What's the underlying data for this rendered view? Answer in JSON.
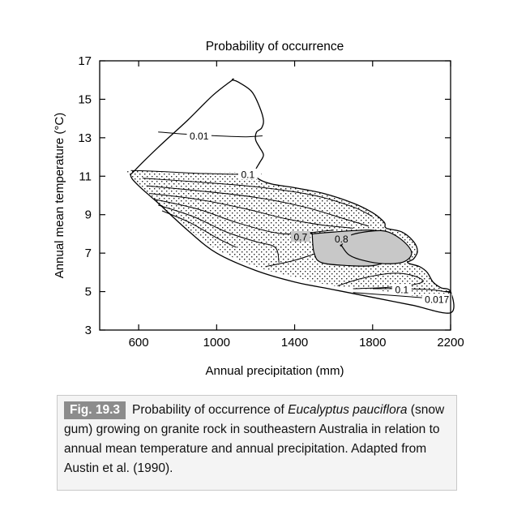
{
  "chart_data": {
    "type": "contour",
    "title": "Probability of occurrence",
    "xlabel": "Annual precipitation (mm)",
    "ylabel": "Annual mean temperature (°C)",
    "xlim": [
      400,
      2200
    ],
    "ylim": [
      3,
      17
    ],
    "x_ticks": [
      600,
      1000,
      1400,
      1800,
      2200
    ],
    "y_ticks": [
      3,
      5,
      7,
      9,
      11,
      13,
      15,
      17
    ],
    "x_tick_labels": [
      "600",
      "1000",
      "1400",
      "1800",
      "2200"
    ],
    "y_tick_labels": [
      "3",
      "5",
      "7",
      "9",
      "11",
      "13",
      "15",
      "17"
    ],
    "contour_labels": [
      "0.01",
      "0.1",
      "0.7",
      "0.8",
      "0.1",
      "0.017"
    ],
    "region_outline": [
      [
        1080,
        16.0
      ],
      [
        1110,
        15.9
      ],
      [
        1180,
        15.4
      ],
      [
        1220,
        14.6
      ],
      [
        1240,
        13.9
      ],
      [
        1230,
        13.5
      ],
      [
        1205,
        13.3
      ],
      [
        1200,
        12.9
      ],
      [
        1220,
        12.5
      ],
      [
        1240,
        12.1
      ],
      [
        1220,
        11.7
      ],
      [
        1200,
        11.3
      ],
      [
        1210,
        10.9
      ],
      [
        1280,
        10.6
      ],
      [
        1400,
        10.4
      ],
      [
        1550,
        10.1
      ],
      [
        1700,
        9.6
      ],
      [
        1800,
        9.1
      ],
      [
        1860,
        8.6
      ],
      [
        1870,
        8.3
      ],
      [
        1950,
        8.1
      ],
      [
        2010,
        7.6
      ],
      [
        2030,
        7.1
      ],
      [
        2010,
        6.7
      ],
      [
        1980,
        6.5
      ],
      [
        2040,
        6.3
      ],
      [
        2080,
        6.0
      ],
      [
        2110,
        5.5
      ],
      [
        2150,
        5.2
      ],
      [
        2200,
        5.0
      ],
      [
        2200,
        3.9
      ],
      [
        2000,
        4.3
      ],
      [
        1800,
        4.7
      ],
      [
        1600,
        5.1
      ],
      [
        1400,
        5.5
      ],
      [
        1200,
        6.1
      ],
      [
        1000,
        7.0
      ],
      [
        850,
        8.2
      ],
      [
        700,
        9.6
      ],
      [
        600,
        10.5
      ],
      [
        560,
        11.0
      ],
      [
        580,
        11.3
      ],
      [
        700,
        12.5
      ],
      [
        850,
        13.9
      ],
      [
        980,
        15.2
      ],
      [
        1080,
        16.0
      ]
    ],
    "stipple_band_upper": [
      [
        560,
        11.3
      ],
      [
        800,
        11.2
      ],
      [
        1200,
        11.2
      ],
      [
        1210,
        10.9
      ],
      [
        1280,
        10.6
      ],
      [
        1400,
        10.4
      ],
      [
        1550,
        10.1
      ],
      [
        1700,
        9.6
      ],
      [
        1800,
        9.1
      ],
      [
        1860,
        8.6
      ],
      [
        1870,
        8.3
      ],
      [
        1950,
        8.1
      ],
      [
        2010,
        7.6
      ],
      [
        2030,
        7.1
      ],
      [
        2010,
        6.7
      ],
      [
        1980,
        6.5
      ],
      [
        2040,
        6.3
      ],
      [
        2080,
        6.0
      ],
      [
        2110,
        5.5
      ],
      [
        2150,
        5.2
      ],
      [
        2200,
        5.0
      ]
    ],
    "stipple_band_lower": [
      [
        2200,
        4.5
      ],
      [
        2100,
        4.6
      ],
      [
        2000,
        4.8
      ],
      [
        1900,
        4.95
      ],
      [
        1800,
        5.1
      ],
      [
        1600,
        5.3
      ],
      [
        1400,
        5.75
      ],
      [
        1200,
        6.3
      ],
      [
        1000,
        7.2
      ],
      [
        850,
        8.3
      ],
      [
        700,
        9.6
      ],
      [
        600,
        10.5
      ],
      [
        560,
        11.0
      ]
    ],
    "contours": [
      {
        "level": "0.01",
        "points": [
          [
            700,
            13.3
          ],
          [
            820,
            13.2
          ],
          [
            1000,
            13.1
          ],
          [
            1150,
            13.05
          ],
          [
            1235,
            13.1
          ]
        ]
      },
      {
        "level": "0.1",
        "points": [
          [
            560,
            11.3
          ],
          [
            700,
            11.25
          ],
          [
            900,
            11.15
          ],
          [
            1100,
            11.1
          ],
          [
            1200,
            11.05
          ]
        ]
      },
      {
        "level": "",
        "points": [
          [
            620,
            10.9
          ],
          [
            900,
            10.7
          ],
          [
            1200,
            10.45
          ],
          [
            1500,
            10.0
          ],
          [
            1700,
            9.4
          ],
          [
            1800,
            8.9
          ]
        ]
      },
      {
        "level": "",
        "points": [
          [
            640,
            10.5
          ],
          [
            900,
            10.25
          ],
          [
            1200,
            9.9
          ],
          [
            1450,
            9.4
          ],
          [
            1650,
            8.8
          ],
          [
            1780,
            8.4
          ]
        ]
      },
      {
        "level": "",
        "points": [
          [
            660,
            10.1
          ],
          [
            900,
            9.8
          ],
          [
            1150,
            9.3
          ],
          [
            1350,
            8.8
          ],
          [
            1550,
            8.45
          ],
          [
            1700,
            8.3
          ]
        ]
      },
      {
        "level": "",
        "points": [
          [
            680,
            9.8
          ],
          [
            900,
            9.3
          ],
          [
            1100,
            8.6
          ],
          [
            1280,
            8.1
          ],
          [
            1400,
            8.0
          ],
          [
            1600,
            8.2
          ]
        ]
      },
      {
        "level": "",
        "points": [
          [
            700,
            9.5
          ],
          [
            880,
            8.9
          ],
          [
            1050,
            8.1
          ],
          [
            1200,
            7.6
          ],
          [
            1300,
            7.3
          ],
          [
            1320,
            6.5
          ]
        ]
      },
      {
        "level": "",
        "points": [
          [
            720,
            9.2
          ],
          [
            860,
            8.6
          ],
          [
            1000,
            7.8
          ],
          [
            1100,
            7.3
          ]
        ]
      },
      {
        "level": "",
        "points": [
          [
            1250,
            6.3
          ],
          [
            1390,
            6.6
          ],
          [
            1500,
            6.95
          ]
        ]
      },
      {
        "level": "",
        "points": [
          [
            1620,
            5.3
          ],
          [
            1750,
            5.7
          ],
          [
            1900,
            5.95
          ],
          [
            2000,
            5.85
          ],
          [
            2060,
            5.55
          ],
          [
            2000,
            5.35
          ],
          [
            1850,
            5.2
          ],
          [
            1700,
            5.15
          ]
        ]
      },
      {
        "level": "0.1",
        "points": [
          [
            1800,
            5.15
          ],
          [
            1950,
            5.15
          ],
          [
            2100,
            5.1
          ],
          [
            2200,
            4.95
          ]
        ]
      },
      {
        "level": "0.017",
        "points": [
          [
            1700,
            4.95
          ],
          [
            1900,
            4.8
          ],
          [
            2100,
            4.65
          ],
          [
            2200,
            4.55
          ]
        ]
      }
    ],
    "shaded_regions": [
      {
        "level": "0.7",
        "points": [
          [
            1490,
            8.0
          ],
          [
            1500,
            7.0
          ],
          [
            1540,
            6.5
          ],
          [
            1680,
            6.35
          ],
          [
            1800,
            6.35
          ],
          [
            1880,
            6.6
          ],
          [
            1920,
            7.0
          ],
          [
            1900,
            7.6
          ],
          [
            1850,
            8.05
          ],
          [
            1780,
            8.2
          ],
          [
            1600,
            8.1
          ],
          [
            1490,
            8.0
          ]
        ]
      },
      {
        "level": "0.8",
        "points": [
          [
            1640,
            7.4
          ],
          [
            1680,
            7.9
          ],
          [
            1800,
            8.15
          ],
          [
            1880,
            8.1
          ],
          [
            1960,
            7.6
          ],
          [
            2000,
            7.0
          ],
          [
            1960,
            6.55
          ],
          [
            1860,
            6.45
          ],
          [
            1760,
            6.6
          ],
          [
            1680,
            6.9
          ],
          [
            1640,
            7.4
          ]
        ]
      }
    ]
  },
  "caption": {
    "fig_label": "Fig. 19.3",
    "text_before": "Probability of occurrence of ",
    "species": "Eucalyptus pauciflora",
    "text_after": " (snow gum) growing on granite rock in southeastern Australia in relation to annual mean temperature and annual precipitation. Adapted from Austin et al. (1990)."
  }
}
